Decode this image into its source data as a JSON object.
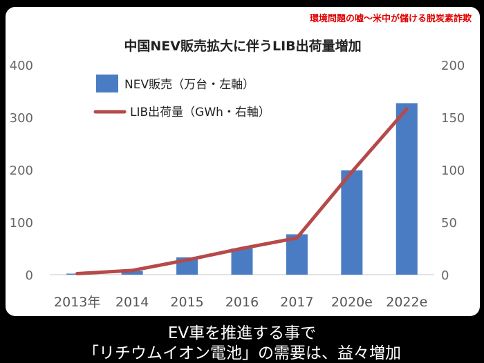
{
  "header_note": "環境問題の嘘～米中が儲ける脱炭素詐欺",
  "caption": {
    "line1": "EV車を推進する事で",
    "line2": "「リチウムイオン電池」の需要は、益々増加"
  },
  "colors": {
    "bar": "#4a7cc4",
    "line": "#b54a4a",
    "header_note": "#e00000",
    "background": "#000000",
    "panel": "#ffffff"
  },
  "chart_data": {
    "type": "bar",
    "title": "中国NEV販売拡大に伴うLIB出荷量増加",
    "categories": [
      "2013年",
      "2014",
      "2015",
      "2016",
      "2017",
      "2020e",
      "2022e"
    ],
    "series": [
      {
        "name": "NEV販売（万台・左軸）",
        "type": "bar",
        "axis": "left",
        "values": [
          2,
          7,
          33,
          50,
          77,
          199,
          327
        ]
      },
      {
        "name": "LIB出荷量（GWh・右軸）",
        "type": "line",
        "axis": "right",
        "values": [
          1,
          4,
          14,
          25,
          35,
          98,
          158
        ]
      }
    ],
    "left_axis": {
      "range": [
        0,
        400
      ],
      "ticks": [
        "0",
        "100",
        "200",
        "300",
        "400"
      ]
    },
    "right_axis": {
      "range": [
        0,
        200
      ],
      "ticks": [
        "0",
        "50",
        "100",
        "150",
        "200"
      ]
    },
    "grid": false,
    "legend": "top-left"
  }
}
